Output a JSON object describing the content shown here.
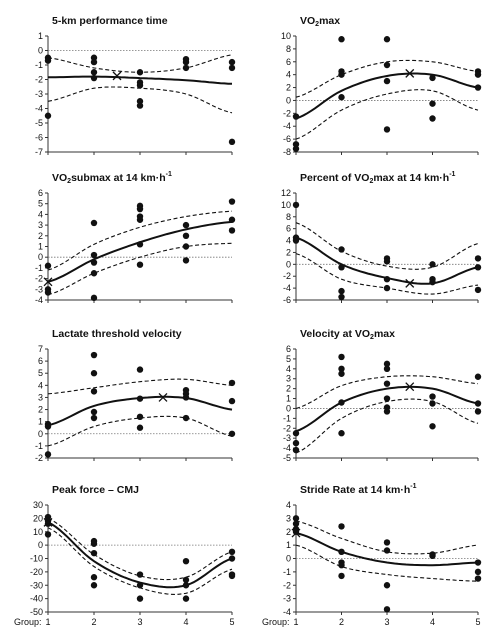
{
  "x_axis_label": "Group:",
  "x_ticks": [
    1,
    2,
    3,
    4,
    5
  ],
  "chart_data": [
    {
      "type": "scatter",
      "title": "5-km performance time",
      "ylim": [
        -7,
        1
      ],
      "yticks": [
        1,
        0,
        -1,
        -2,
        -3,
        -4,
        -5,
        -6,
        -7
      ],
      "fit_curve": {
        "x": [
          1,
          2,
          3,
          4,
          5
        ],
        "y": [
          -1.85,
          -1.8,
          -1.9,
          -2.05,
          -2.3
        ]
      },
      "upper_band": {
        "x": [
          1,
          2,
          3,
          4,
          5
        ],
        "y": [
          -0.5,
          -1.2,
          -1.5,
          -1.2,
          -0.3
        ]
      },
      "lower_band": {
        "x": [
          1,
          2,
          3,
          4,
          5
        ],
        "y": [
          -3.5,
          -2.6,
          -2.6,
          -3.0,
          -4.3
        ]
      },
      "peak": {
        "x": 2.5,
        "y": -1.75
      },
      "points": [
        [
          1,
          -0.5
        ],
        [
          1,
          -0.7
        ],
        [
          1,
          -4.5
        ],
        [
          2,
          -0.5
        ],
        [
          2,
          -0.8
        ],
        [
          2,
          -1.5
        ],
        [
          2,
          -1.9
        ],
        [
          3,
          -1.5
        ],
        [
          3,
          -2.2
        ],
        [
          3,
          -2.4
        ],
        [
          3,
          -3.5
        ],
        [
          3,
          -3.8
        ],
        [
          4,
          -0.6
        ],
        [
          4,
          -0.8
        ],
        [
          4,
          -1.2
        ],
        [
          5,
          -0.8
        ],
        [
          5,
          -1.2
        ],
        [
          5,
          -6.3
        ]
      ]
    },
    {
      "type": "scatter",
      "title_parts": [
        "VO",
        "2",
        "max"
      ],
      "ylim": [
        -8,
        10
      ],
      "yticks": [
        10,
        8,
        6,
        4,
        2,
        0,
        -2,
        -4,
        -6,
        -8
      ],
      "fit_curve": {
        "x": [
          1,
          2,
          3,
          4,
          5
        ],
        "y": [
          -2.8,
          1.5,
          3.8,
          4.0,
          2.0
        ]
      },
      "upper_band": {
        "x": [
          1,
          2,
          3,
          4,
          5
        ],
        "y": [
          0.5,
          4.0,
          6.0,
          6.0,
          4.5
        ]
      },
      "lower_band": {
        "x": [
          1,
          2,
          3,
          4,
          5
        ],
        "y": [
          -6.0,
          -1.5,
          1.0,
          1.5,
          -1.5
        ]
      },
      "peak": {
        "x": 3.5,
        "y": 4.2
      },
      "points": [
        [
          1,
          -2.5
        ],
        [
          1,
          -6.8
        ],
        [
          1,
          -7.5
        ],
        [
          2,
          9.5
        ],
        [
          2,
          4.5
        ],
        [
          2,
          4.0
        ],
        [
          2,
          0.5
        ],
        [
          3,
          9.5
        ],
        [
          3,
          5.5
        ],
        [
          3,
          3.0
        ],
        [
          3,
          -4.5
        ],
        [
          4,
          3.5
        ],
        [
          4,
          -0.5
        ],
        [
          4,
          -2.8
        ],
        [
          5,
          4.5
        ],
        [
          5,
          4.0
        ],
        [
          5,
          2.0
        ]
      ]
    },
    {
      "type": "scatter",
      "title_parts": [
        "VO",
        "2",
        "submax at 14 km·h",
        "-1"
      ],
      "ylim": [
        -4,
        6
      ],
      "yticks": [
        6,
        5,
        4,
        3,
        2,
        1,
        0,
        -1,
        -2,
        -3,
        -4
      ],
      "fit_curve": {
        "x": [
          1,
          2,
          3,
          4,
          5
        ],
        "y": [
          -2.3,
          -0.2,
          1.4,
          2.6,
          3.3
        ]
      },
      "upper_band": {
        "x": [
          1,
          2,
          3,
          4,
          5
        ],
        "y": [
          -1.2,
          1.2,
          2.8,
          3.8,
          4.3
        ]
      },
      "lower_band": {
        "x": [
          1,
          2,
          3,
          4,
          5
        ],
        "y": [
          -3.5,
          -1.5,
          0,
          1.0,
          1.3
        ]
      },
      "peak": {
        "x": 1,
        "y": -2.3
      },
      "points": [
        [
          1,
          -0.8
        ],
        [
          1,
          -3.0
        ],
        [
          1,
          -3.3
        ],
        [
          2,
          3.2
        ],
        [
          2,
          0.2
        ],
        [
          2,
          -0.5
        ],
        [
          2,
          -1.5
        ],
        [
          2,
          -3.8
        ],
        [
          3,
          4.8
        ],
        [
          3,
          4.5
        ],
        [
          3,
          3.8
        ],
        [
          3,
          3.5
        ],
        [
          3,
          1.2
        ],
        [
          3,
          -0.7
        ],
        [
          4,
          3.0
        ],
        [
          4,
          2.0
        ],
        [
          4,
          1.0
        ],
        [
          4,
          -0.3
        ],
        [
          5,
          5.2
        ],
        [
          5,
          3.5
        ],
        [
          5,
          2.5
        ]
      ]
    },
    {
      "type": "scatter",
      "title_parts": [
        "Percent of VO",
        "2",
        "max at 14 km·h",
        "-1"
      ],
      "ylim": [
        -6,
        12
      ],
      "yticks": [
        12,
        10,
        8,
        6,
        4,
        2,
        0,
        -2,
        -4,
        -6
      ],
      "fit_curve": {
        "x": [
          1,
          2,
          3,
          4,
          5
        ],
        "y": [
          4.5,
          0,
          -2.3,
          -3.2,
          -0.5
        ]
      },
      "upper_band": {
        "x": [
          1,
          2,
          3,
          4,
          5
        ],
        "y": [
          7.0,
          2.2,
          -0.3,
          -0.5,
          3.5
        ]
      },
      "lower_band": {
        "x": [
          1,
          2,
          3,
          4,
          5
        ],
        "y": [
          1.8,
          -2.5,
          -4.0,
          -5.0,
          -3.5
        ]
      },
      "peak": {
        "x": 3.5,
        "y": -3.2
      },
      "points": [
        [
          1,
          10.0
        ],
        [
          1,
          4.5
        ],
        [
          1,
          4.0
        ],
        [
          2,
          2.5
        ],
        [
          2,
          -0.5
        ],
        [
          2,
          -4.5
        ],
        [
          2,
          -5.5
        ],
        [
          3,
          1.0
        ],
        [
          3,
          0.5
        ],
        [
          3,
          -2.5
        ],
        [
          3,
          -4.0
        ],
        [
          4,
          0
        ],
        [
          4,
          -2.5
        ],
        [
          4,
          -3.0
        ],
        [
          5,
          1.0
        ],
        [
          5,
          -0.5
        ],
        [
          5,
          -4.3
        ]
      ]
    },
    {
      "type": "scatter",
      "title": "Lactate threshold velocity",
      "ylim": [
        -2,
        7
      ],
      "yticks": [
        7,
        6,
        5,
        4,
        3,
        2,
        1,
        0,
        -1,
        -2
      ],
      "fit_curve": {
        "x": [
          1,
          2,
          3,
          4,
          5
        ],
        "y": [
          0.7,
          2.3,
          2.95,
          2.95,
          2.0
        ]
      },
      "upper_band": {
        "x": [
          1,
          2,
          3,
          4,
          5
        ],
        "y": [
          3.3,
          3.8,
          4.3,
          4.5,
          4.0
        ]
      },
      "lower_band": {
        "x": [
          1,
          2,
          3,
          4,
          5
        ],
        "y": [
          -1.0,
          0.6,
          1.3,
          1.3,
          -0.2
        ]
      },
      "peak": {
        "x": 3.5,
        "y": 3.0
      },
      "points": [
        [
          1,
          0.8
        ],
        [
          1,
          0.6
        ],
        [
          1,
          -1.7
        ],
        [
          2,
          6.5
        ],
        [
          2,
          5.0
        ],
        [
          2,
          3.5
        ],
        [
          2,
          1.8
        ],
        [
          2,
          1.3
        ],
        [
          3,
          5.3
        ],
        [
          3,
          2.9
        ],
        [
          3,
          1.4
        ],
        [
          3,
          0.5
        ],
        [
          4,
          3.6
        ],
        [
          4,
          3.3
        ],
        [
          4,
          3.0
        ],
        [
          4,
          1.3
        ],
        [
          5,
          4.2
        ],
        [
          5,
          2.7
        ],
        [
          5,
          0
        ]
      ]
    },
    {
      "type": "scatter",
      "title_parts": [
        "Velocity at VO",
        "2",
        "max"
      ],
      "ylim": [
        -5,
        6
      ],
      "yticks": [
        6,
        5,
        4,
        3,
        2,
        1,
        0,
        -1,
        -2,
        -3,
        -4,
        -5
      ],
      "fit_curve": {
        "x": [
          1,
          2,
          3,
          4,
          5
        ],
        "y": [
          -2.3,
          0.6,
          2.0,
          2.0,
          0.5
        ]
      },
      "upper_band": {
        "x": [
          1,
          2,
          3,
          4,
          5
        ],
        "y": [
          0,
          2.3,
          3.2,
          3.2,
          2.5
        ]
      },
      "lower_band": {
        "x": [
          1,
          2,
          3,
          4,
          5
        ],
        "y": [
          -4.5,
          -1.0,
          0.7,
          0.7,
          -1.5
        ]
      },
      "peak": {
        "x": 3.5,
        "y": 2.2
      },
      "points": [
        [
          1,
          -2.5
        ],
        [
          1,
          -3.5
        ],
        [
          1,
          -4.2
        ],
        [
          2,
          5.2
        ],
        [
          2,
          4.0
        ],
        [
          2,
          3.5
        ],
        [
          2,
          0.6
        ],
        [
          2,
          -2.5
        ],
        [
          3,
          4.5
        ],
        [
          3,
          4.0
        ],
        [
          3,
          2.5
        ],
        [
          3,
          1.0
        ],
        [
          3,
          0.1
        ],
        [
          3,
          -0.3
        ],
        [
          4,
          1.2
        ],
        [
          4,
          0.5
        ],
        [
          4,
          -1.8
        ],
        [
          5,
          3.2
        ],
        [
          5,
          0.5
        ],
        [
          5,
          -0.3
        ]
      ]
    },
    {
      "type": "scatter",
      "title": "Peak force – CMJ",
      "ylim": [
        -50,
        30
      ],
      "yticks": [
        30,
        20,
        10,
        0,
        -10,
        -20,
        -30,
        -40,
        -50
      ],
      "fit_curve": {
        "x": [
          1,
          2,
          3,
          4,
          5
        ],
        "y": [
          17,
          -12,
          -28,
          -30,
          -10
        ]
      },
      "upper_band": {
        "x": [
          1,
          2,
          3,
          4,
          5
        ],
        "y": [
          20,
          -7,
          -23,
          -24,
          -5
        ]
      },
      "lower_band": {
        "x": [
          1,
          2,
          3,
          4,
          5
        ],
        "y": [
          13,
          -16,
          -32,
          -36,
          -18
        ]
      },
      "peak": {
        "x": 1,
        "y": 17
      },
      "points": [
        [
          1,
          21
        ],
        [
          1,
          18
        ],
        [
          1,
          16
        ],
        [
          1,
          8
        ],
        [
          2,
          3
        ],
        [
          2,
          1
        ],
        [
          2,
          -6
        ],
        [
          2,
          -24
        ],
        [
          2,
          -30
        ],
        [
          3,
          -22
        ],
        [
          3,
          -30
        ],
        [
          3,
          -40
        ],
        [
          4,
          -12
        ],
        [
          4,
          -26
        ],
        [
          4,
          -30
        ],
        [
          4,
          -40
        ],
        [
          5,
          -5
        ],
        [
          5,
          -10
        ],
        [
          5,
          -22
        ],
        [
          5,
          -23
        ]
      ]
    },
    {
      "type": "scatter",
      "title": "Stride Rate at 14 km·h",
      "title_sup": "-1",
      "ylim": [
        -4,
        4
      ],
      "yticks": [
        4,
        3,
        2,
        1,
        0,
        -1,
        -2,
        -3,
        -4
      ],
      "fit_curve": {
        "x": [
          1,
          2,
          3,
          4,
          5
        ],
        "y": [
          1.9,
          0.5,
          -0.3,
          -0.5,
          -0.3
        ]
      },
      "upper_band": {
        "x": [
          1,
          2,
          3,
          4,
          5
        ],
        "y": [
          2.8,
          1.5,
          0.5,
          0.4,
          1.0
        ]
      },
      "lower_band": {
        "x": [
          1,
          2,
          3,
          4,
          5
        ],
        "y": [
          1.0,
          -0.6,
          -1.2,
          -1.5,
          -1.7
        ]
      },
      "peak": {
        "x": 1,
        "y": 1.9
      },
      "points": [
        [
          1,
          3.0
        ],
        [
          1,
          2.6
        ],
        [
          1,
          2.2
        ],
        [
          1,
          2.0
        ],
        [
          2,
          2.4
        ],
        [
          2,
          0.5
        ],
        [
          2,
          -0.3
        ],
        [
          2,
          -0.5
        ],
        [
          2,
          -1.3
        ],
        [
          3,
          1.2
        ],
        [
          3,
          0.6
        ],
        [
          3,
          -2.0
        ],
        [
          3,
          -3.8
        ],
        [
          4,
          0.3
        ],
        [
          4,
          0.2
        ],
        [
          5,
          -0.3
        ],
        [
          5,
          -1.0
        ],
        [
          5,
          -1.5
        ]
      ]
    }
  ]
}
